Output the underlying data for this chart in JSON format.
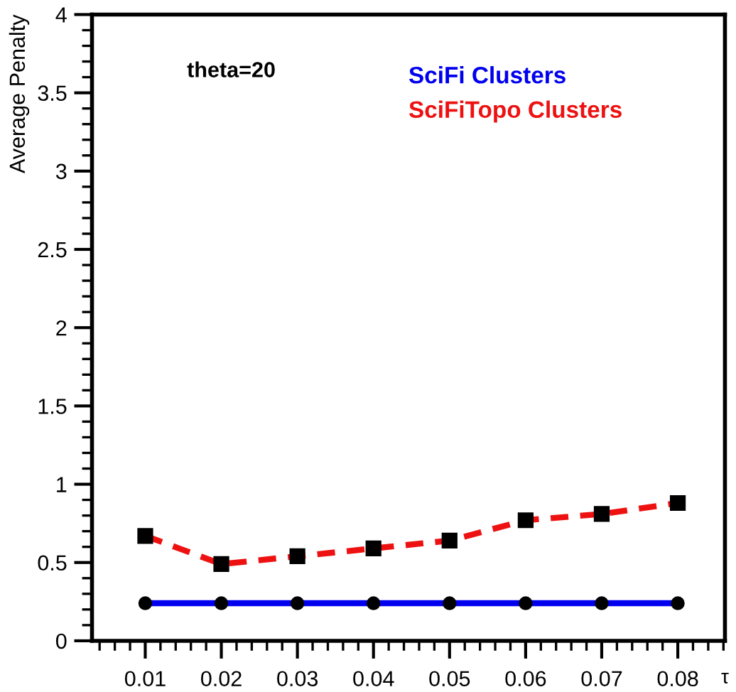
{
  "chart_data": {
    "type": "line",
    "xlabel": "τ",
    "ylabel": "Average Penalty",
    "annotations": [
      "theta=20"
    ],
    "x": [
      0.01,
      0.02,
      0.03,
      0.04,
      0.05,
      0.06,
      0.07,
      0.08
    ],
    "series": [
      {
        "name": "SciFi Clusters",
        "color": "#0000ee",
        "values": [
          0.24,
          0.24,
          0.24,
          0.24,
          0.24,
          0.24,
          0.24,
          0.24
        ],
        "marker": "circle",
        "line_style": "solid"
      },
      {
        "name": "SciFiTopo Clusters",
        "color": "#ee1111",
        "values": [
          0.67,
          0.49,
          0.54,
          0.59,
          0.64,
          0.77,
          0.81,
          0.88
        ],
        "marker": "square",
        "line_style": "dashed"
      }
    ],
    "xlim": [
      0.003,
      0.0862
    ],
    "xticks": [
      0.01,
      0.02,
      0.03,
      0.04,
      0.05,
      0.06,
      0.07,
      0.08
    ],
    "ylim": [
      0,
      4
    ],
    "yticks": [
      0,
      0.5,
      1,
      1.5,
      2,
      2.5,
      3,
      3.5,
      4
    ],
    "grid": false,
    "legend": "top right"
  }
}
